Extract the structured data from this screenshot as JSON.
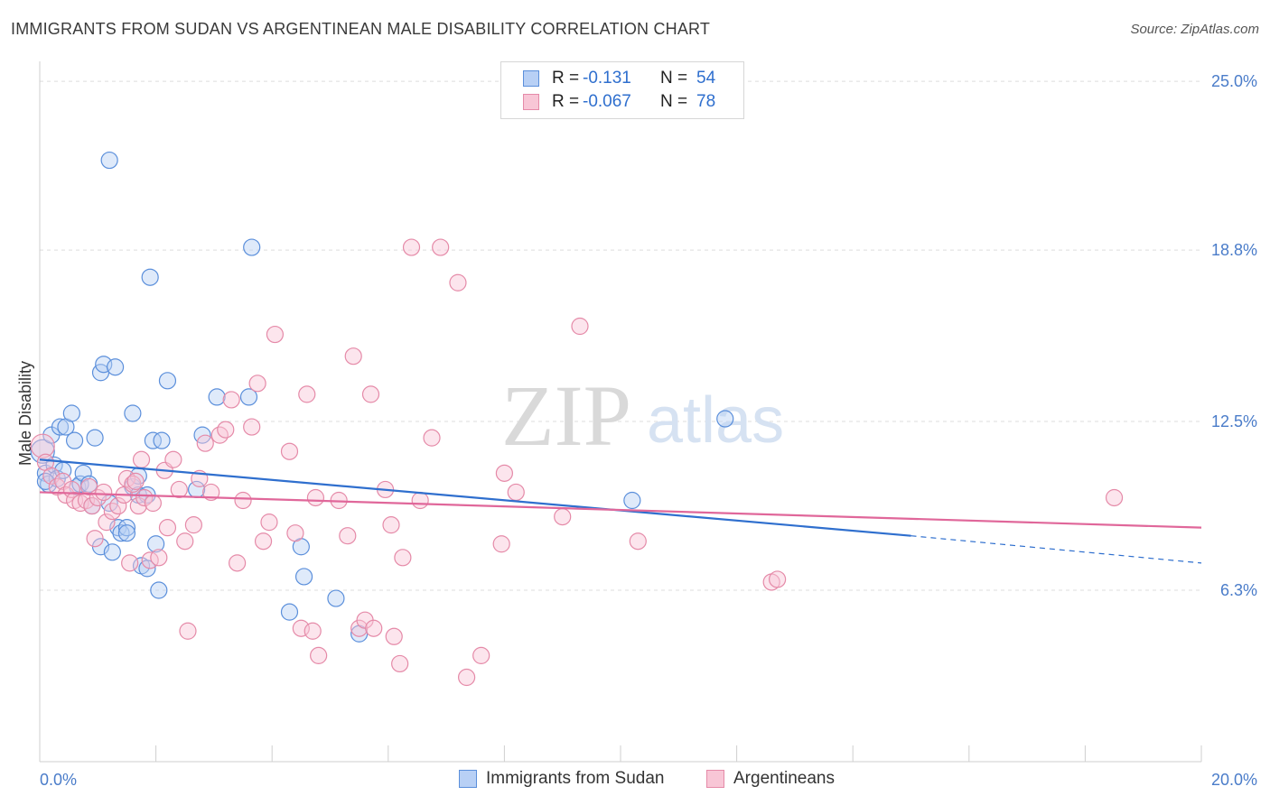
{
  "title": "IMMIGRANTS FROM SUDAN VS ARGENTINEAN MALE DISABILITY CORRELATION CHART",
  "source": "Source: ZipAtlas.com",
  "watermark": {
    "zip": "ZIP",
    "atlas": "atlas"
  },
  "legend_stats": [
    {
      "r_label": "R =",
      "r_value": "-0.131",
      "n_label": "N =",
      "n_value": "54"
    },
    {
      "r_label": "R =",
      "r_value": "-0.067",
      "n_label": "N =",
      "n_value": "78"
    }
  ],
  "colors": {
    "sudan_fill": "#b8d0f5",
    "sudan_stroke": "#5b8fdb",
    "sudan_line": "#2f6fce",
    "arg_fill": "#f8c6d6",
    "arg_stroke": "#e58aa8",
    "arg_line": "#e0679a",
    "grid": "#dddddd",
    "tick_text": "#4a7cc9"
  },
  "chart_data": {
    "type": "scatter",
    "title": "IMMIGRANTS FROM SUDAN VS ARGENTINEAN MALE DISABILITY CORRELATION CHART",
    "xlabel": "",
    "ylabel": "Male Disability",
    "xlim": [
      0,
      20
    ],
    "ylim": [
      0,
      25.6
    ],
    "x_tick_labels": [
      "0.0%",
      "20.0%"
    ],
    "y_ticks": [
      6.3,
      12.5,
      18.8,
      25.0
    ],
    "y_tick_labels": [
      "6.3%",
      "12.5%",
      "18.8%",
      "25.0%"
    ],
    "grid": true,
    "legend_position": "bottom",
    "series": [
      {
        "name": "Immigrants from Sudan",
        "color": "#5b8fdb",
        "trend": {
          "x": [
            0.0,
            15.0
          ],
          "y": [
            11.1,
            8.3
          ],
          "dashed_to": [
            20.0,
            7.3
          ]
        },
        "points": [
          [
            0.05,
            11.4
          ],
          [
            0.1,
            10.6
          ],
          [
            0.15,
            10.2
          ],
          [
            0.2,
            12.0
          ],
          [
            0.25,
            10.9
          ],
          [
            0.3,
            10.4
          ],
          [
            0.35,
            12.3
          ],
          [
            0.4,
            10.7
          ],
          [
            0.45,
            12.3
          ],
          [
            0.55,
            12.8
          ],
          [
            0.6,
            11.8
          ],
          [
            0.65,
            10.1
          ],
          [
            0.7,
            10.2
          ],
          [
            0.75,
            10.6
          ],
          [
            0.85,
            10.2
          ],
          [
            0.9,
            9.4
          ],
          [
            0.95,
            11.9
          ],
          [
            1.05,
            7.9
          ],
          [
            1.05,
            14.3
          ],
          [
            1.1,
            14.6
          ],
          [
            1.2,
            9.5
          ],
          [
            1.25,
            7.7
          ],
          [
            1.3,
            14.5
          ],
          [
            1.35,
            8.6
          ],
          [
            1.4,
            8.4
          ],
          [
            1.5,
            8.6
          ],
          [
            1.5,
            8.4
          ],
          [
            1.6,
            12.8
          ],
          [
            1.6,
            10.1
          ],
          [
            1.7,
            9.8
          ],
          [
            1.7,
            10.5
          ],
          [
            1.75,
            7.2
          ],
          [
            1.85,
            9.8
          ],
          [
            1.85,
            7.1
          ],
          [
            1.9,
            17.8
          ],
          [
            1.95,
            11.8
          ],
          [
            2.0,
            8.0
          ],
          [
            2.05,
            6.3
          ],
          [
            2.1,
            11.8
          ],
          [
            2.2,
            14.0
          ],
          [
            1.2,
            22.1
          ],
          [
            2.7,
            10.0
          ],
          [
            2.8,
            12.0
          ],
          [
            3.05,
            13.4
          ],
          [
            3.6,
            13.4
          ],
          [
            3.65,
            18.9
          ],
          [
            4.3,
            5.5
          ],
          [
            4.5,
            7.9
          ],
          [
            4.55,
            6.8
          ],
          [
            5.1,
            6.0
          ],
          [
            5.5,
            4.7
          ],
          [
            10.2,
            9.6
          ],
          [
            11.8,
            12.6
          ],
          [
            0.1,
            10.3
          ]
        ]
      },
      {
        "name": "Argentineans",
        "color": "#e58aa8",
        "trend": {
          "x": [
            0.0,
            20.0
          ],
          "y": [
            9.9,
            8.6
          ]
        },
        "points": [
          [
            0.05,
            11.6
          ],
          [
            0.1,
            11.0
          ],
          [
            0.2,
            10.5
          ],
          [
            0.3,
            10.1
          ],
          [
            0.4,
            10.3
          ],
          [
            0.45,
            9.8
          ],
          [
            0.55,
            10.0
          ],
          [
            0.6,
            9.6
          ],
          [
            0.7,
            9.5
          ],
          [
            0.8,
            9.6
          ],
          [
            0.85,
            10.1
          ],
          [
            0.9,
            9.4
          ],
          [
            0.95,
            8.2
          ],
          [
            1.0,
            9.7
          ],
          [
            1.1,
            9.9
          ],
          [
            1.15,
            8.8
          ],
          [
            1.25,
            9.2
          ],
          [
            1.35,
            9.4
          ],
          [
            1.45,
            9.8
          ],
          [
            1.5,
            10.4
          ],
          [
            1.55,
            7.3
          ],
          [
            1.6,
            10.2
          ],
          [
            1.65,
            10.3
          ],
          [
            1.7,
            9.4
          ],
          [
            1.75,
            11.1
          ],
          [
            1.8,
            9.7
          ],
          [
            1.9,
            7.4
          ],
          [
            1.95,
            9.5
          ],
          [
            2.05,
            7.5
          ],
          [
            2.15,
            10.7
          ],
          [
            2.2,
            8.6
          ],
          [
            2.3,
            11.1
          ],
          [
            2.4,
            10.0
          ],
          [
            2.5,
            8.1
          ],
          [
            2.55,
            4.8
          ],
          [
            2.65,
            8.7
          ],
          [
            2.75,
            10.4
          ],
          [
            2.85,
            11.7
          ],
          [
            2.95,
            9.9
          ],
          [
            3.1,
            12.0
          ],
          [
            3.2,
            12.2
          ],
          [
            3.3,
            13.3
          ],
          [
            3.4,
            7.3
          ],
          [
            3.5,
            9.6
          ],
          [
            3.65,
            12.3
          ],
          [
            3.75,
            13.9
          ],
          [
            3.85,
            8.1
          ],
          [
            3.95,
            8.8
          ],
          [
            4.05,
            15.7
          ],
          [
            4.3,
            11.4
          ],
          [
            4.4,
            8.4
          ],
          [
            4.5,
            4.9
          ],
          [
            4.6,
            13.5
          ],
          [
            4.7,
            4.8
          ],
          [
            4.75,
            9.7
          ],
          [
            4.8,
            3.9
          ],
          [
            5.15,
            9.6
          ],
          [
            5.3,
            8.3
          ],
          [
            5.4,
            14.9
          ],
          [
            5.5,
            4.9
          ],
          [
            5.6,
            5.2
          ],
          [
            5.7,
            13.5
          ],
          [
            5.75,
            4.9
          ],
          [
            5.95,
            10.0
          ],
          [
            6.05,
            8.7
          ],
          [
            6.1,
            4.6
          ],
          [
            6.2,
            3.6
          ],
          [
            6.25,
            7.5
          ],
          [
            6.4,
            18.9
          ],
          [
            6.55,
            9.6
          ],
          [
            6.75,
            11.9
          ],
          [
            6.9,
            18.9
          ],
          [
            7.2,
            17.6
          ],
          [
            7.35,
            3.1
          ],
          [
            7.6,
            3.9
          ],
          [
            7.95,
            8.0
          ],
          [
            8.0,
            10.6
          ],
          [
            8.2,
            9.9
          ]
        ],
        "extra_points": [
          [
            9.0,
            9.0
          ],
          [
            9.3,
            16.0
          ],
          [
            10.3,
            8.1
          ],
          [
            12.6,
            6.6
          ],
          [
            12.7,
            6.7
          ],
          [
            18.5,
            9.7
          ]
        ]
      }
    ]
  }
}
